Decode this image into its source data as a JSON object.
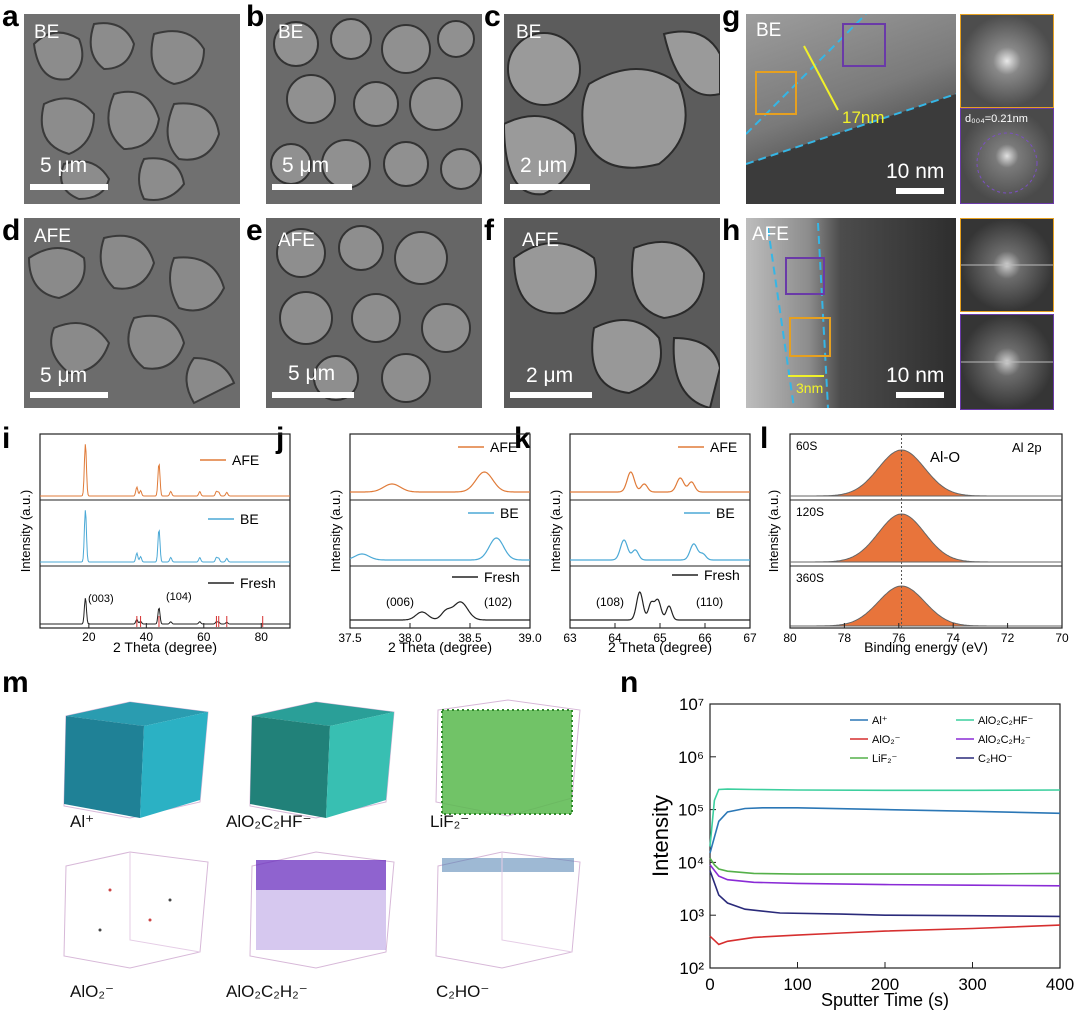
{
  "sem": {
    "a": {
      "letter": "a",
      "tag": "BE",
      "scale": "5 μm"
    },
    "b": {
      "letter": "b",
      "tag": "BE",
      "scale": "5 μm"
    },
    "c": {
      "letter": "c",
      "tag": "BE",
      "scale": "2 μm"
    },
    "d": {
      "letter": "d",
      "tag": "AFE",
      "scale": "5 μm"
    },
    "e": {
      "letter": "e",
      "tag": "AFE",
      "scale": "5 μm"
    },
    "f": {
      "letter": "f",
      "tag": "AFE",
      "scale": "2 μm"
    }
  },
  "tem": {
    "g": {
      "letter": "g",
      "tag": "BE",
      "thickness": "17nm",
      "scale": "10 nm",
      "dspacing": "d₀₀₄=0.21nm"
    },
    "h": {
      "letter": "h",
      "tag": "AFE",
      "thickness": "3nm",
      "scale": "10 nm"
    }
  },
  "colors": {
    "afe": "#e07b39",
    "be": "#4ba9d6",
    "fresh": "#222222",
    "peak": "#e8743b"
  },
  "chart_data": [
    {
      "id": "i",
      "type": "line",
      "xlabel": "2 Theta (degree)",
      "ylabel": "Intensity (a.u.)",
      "xlim": [
        3,
        90
      ],
      "xticks": [
        20,
        40,
        60,
        80
      ],
      "series": [
        {
          "name": "AFE"
        },
        {
          "name": "BE"
        },
        {
          "name": "Fresh"
        }
      ],
      "annotations": [
        "(003)",
        "(104)"
      ],
      "peaks": [
        18.8,
        36.7,
        38.0,
        44.4,
        48.5,
        58.6,
        64.4,
        65.2,
        68.0
      ]
    },
    {
      "id": "j",
      "type": "line",
      "xlabel": "2 Theta (degree)",
      "ylabel": "Intensity (a.u.)",
      "xlim": [
        37.5,
        39.0
      ],
      "xticks": [
        "37.5",
        "38.0",
        "38.5",
        "39.0"
      ],
      "series": [
        {
          "name": "AFE"
        },
        {
          "name": "BE"
        },
        {
          "name": "Fresh"
        }
      ],
      "annotations": [
        "(006)",
        "(102)"
      ]
    },
    {
      "id": "k",
      "type": "line",
      "xlabel": "2 Theta (degree)",
      "ylabel": "Intensity (a.u.)",
      "xlim": [
        63,
        67
      ],
      "xticks": [
        "63",
        "64",
        "65",
        "66",
        "67"
      ],
      "series": [
        {
          "name": "AFE"
        },
        {
          "name": "BE"
        },
        {
          "name": "Fresh"
        }
      ],
      "annotations": [
        "(108)",
        "(110)"
      ]
    },
    {
      "id": "l",
      "type": "area",
      "title": "Al 2p",
      "xlabel": "Binding energy (eV)",
      "ylabel": "Intensity (a.u.)",
      "xlim": [
        80,
        70
      ],
      "xticks": [
        "80",
        "78",
        "76",
        "74",
        "72",
        "70"
      ],
      "peak_center": 75.9,
      "peak_label": "Al-O",
      "series": [
        {
          "name": "60S"
        },
        {
          "name": "120S"
        },
        {
          "name": "360S"
        }
      ]
    },
    {
      "id": "n",
      "type": "line",
      "xlabel": "Sputter Time (s)",
      "ylabel": "Intensity",
      "yscale": "log",
      "xlim": [
        0,
        400
      ],
      "ylim": [
        100,
        10000000
      ],
      "xticks": [
        "0",
        "100",
        "200",
        "300",
        "400"
      ],
      "yticks": [
        "10²",
        "10³",
        "10⁴",
        "10⁵",
        "10⁶",
        "10⁷"
      ],
      "legend": "top-right",
      "series": [
        {
          "name": "Al⁺",
          "color": "#2b77b6",
          "x": [
            0,
            10,
            20,
            40,
            60,
            100,
            200,
            300,
            400
          ],
          "y": [
            15000,
            60000,
            90000,
            105000,
            108000,
            108000,
            100000,
            93000,
            85000
          ]
        },
        {
          "name": "LiF₂⁻",
          "color": "#55b04a",
          "x": [
            0,
            5,
            10,
            20,
            50,
            100,
            200,
            300,
            400
          ],
          "y": [
            12000,
            9000,
            7500,
            6800,
            6200,
            6000,
            6000,
            6000,
            6200
          ]
        },
        {
          "name": "AlO₂⁻",
          "color": "#d62f2f",
          "x": [
            0,
            10,
            20,
            50,
            100,
            150,
            200,
            300,
            400
          ],
          "y": [
            400,
            280,
            320,
            380,
            420,
            460,
            500,
            560,
            650
          ]
        },
        {
          "name": "AlO₂C₂HF⁻",
          "color": "#3ccf9e",
          "x": [
            0,
            5,
            10,
            20,
            50,
            100,
            200,
            300,
            400
          ],
          "y": [
            20000,
            150000,
            240000,
            245000,
            240000,
            235000,
            232000,
            232000,
            235000
          ]
        },
        {
          "name": "AlO₂C₂H₂⁻",
          "color": "#8a2bd6",
          "x": [
            0,
            10,
            20,
            50,
            100,
            200,
            300,
            400
          ],
          "y": [
            9000,
            5500,
            4700,
            4200,
            4000,
            3800,
            3700,
            3600
          ]
        },
        {
          "name": "C₂HO⁻",
          "color": "#2a2a7a",
          "x": [
            0,
            10,
            20,
            40,
            80,
            150,
            200,
            300,
            400
          ],
          "y": [
            7000,
            2400,
            1700,
            1300,
            1100,
            1050,
            1000,
            980,
            950
          ]
        }
      ]
    }
  ],
  "tof": {
    "letter": "m",
    "volumes": [
      {
        "label": "Al⁺"
      },
      {
        "label": "AlO₂C₂HF⁻"
      },
      {
        "label": "LiF₂⁻"
      },
      {
        "label": "AlO₂⁻"
      },
      {
        "label": "AlO₂C₂H₂⁻"
      },
      {
        "label": "C₂HO⁻"
      }
    ]
  },
  "labels": {
    "i": "i",
    "j": "j",
    "k": "k",
    "l": "l",
    "m": "m",
    "n": "n"
  }
}
